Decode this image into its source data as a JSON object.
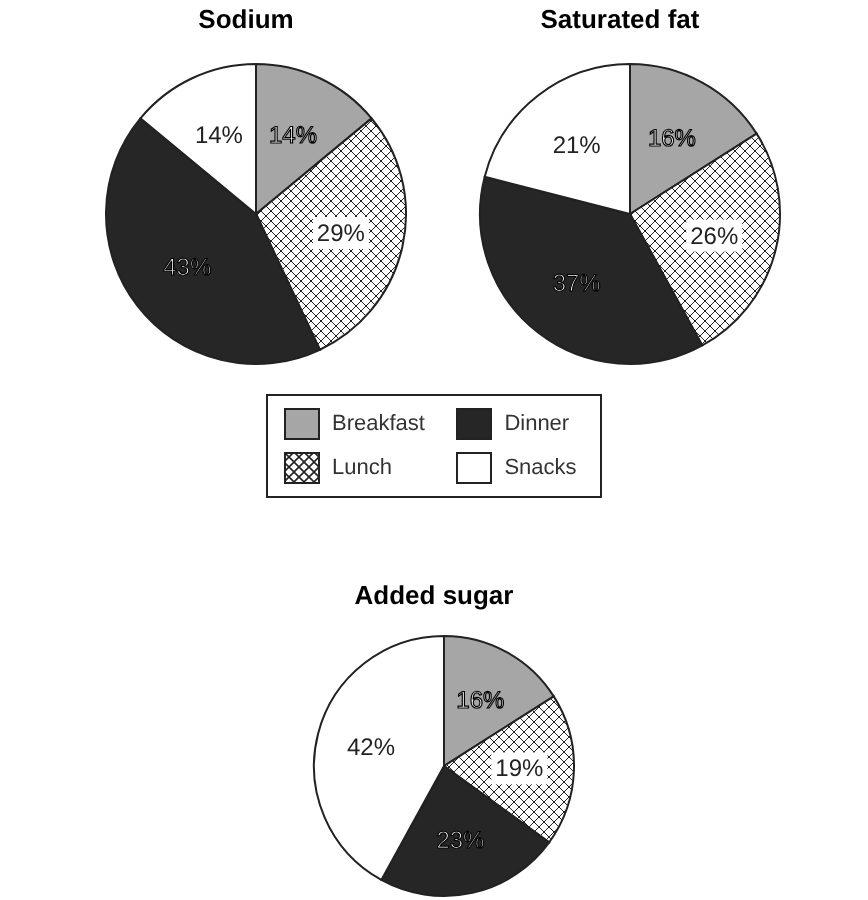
{
  "chart_data": [
    {
      "type": "pie",
      "title": "Sodium",
      "categories": [
        "Breakfast",
        "Lunch",
        "Dinner",
        "Snacks"
      ],
      "values": [
        14,
        29,
        43,
        14
      ],
      "value_labels": [
        "14%",
        "29%",
        "43%",
        "14%"
      ],
      "colors": [
        "#a6a6a6",
        "#222222",
        "#262626",
        "#ffffff"
      ],
      "legend": "bottom"
    },
    {
      "type": "pie",
      "title": "Saturated fat",
      "categories": [
        null,
        null,
        null,
        null
      ],
      "values": [
        16,
        26,
        37,
        21
      ],
      "value_labels": [
        "16%",
        "26%",
        "37%",
        "21%"
      ],
      "colors": [
        "#a6a6a6",
        "#222222",
        "#262626",
        "#ffffff"
      ]
    },
    {
      "type": "pie",
      "title": "Added sugar",
      "categories": [
        null,
        null,
        null,
        null
      ],
      "values": [
        16,
        19,
        23,
        42
      ],
      "value_labels": [
        "16%",
        "19%",
        "23%",
        "42%"
      ],
      "colors": [
        "#a6a6a6",
        "#222222",
        "#262626",
        "#ffffff"
      ]
    }
  ]
}
